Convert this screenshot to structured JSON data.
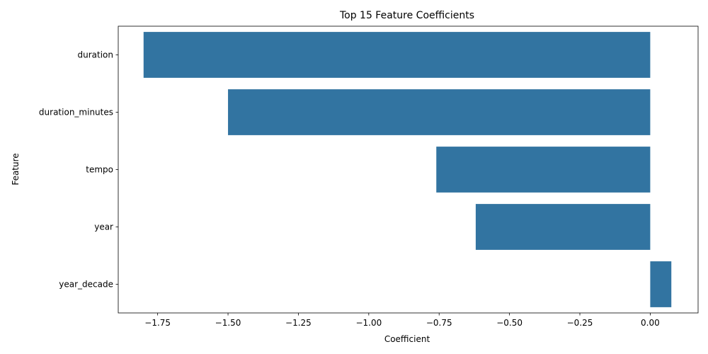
{
  "chart_data": {
    "type": "bar",
    "orientation": "horizontal",
    "title": "Top 15 Feature Coefficients",
    "xlabel": "Coefficient",
    "ylabel": "Feature",
    "categories": [
      "duration",
      "duration_minutes",
      "tempo",
      "year",
      "year_decade"
    ],
    "values": [
      -1.8,
      -1.5,
      -0.76,
      -0.62,
      0.075
    ],
    "xlim": [
      -1.89,
      0.17
    ],
    "xticks": [
      -1.75,
      -1.5,
      -1.25,
      -1.0,
      -0.75,
      -0.5,
      -0.25,
      0.0
    ],
    "xtick_labels": [
      "−1.75",
      "−1.50",
      "−1.25",
      "−1.00",
      "−0.75",
      "−0.50",
      "−0.25",
      "0.00"
    ],
    "grid": false,
    "bar_color": "#3274a1"
  }
}
